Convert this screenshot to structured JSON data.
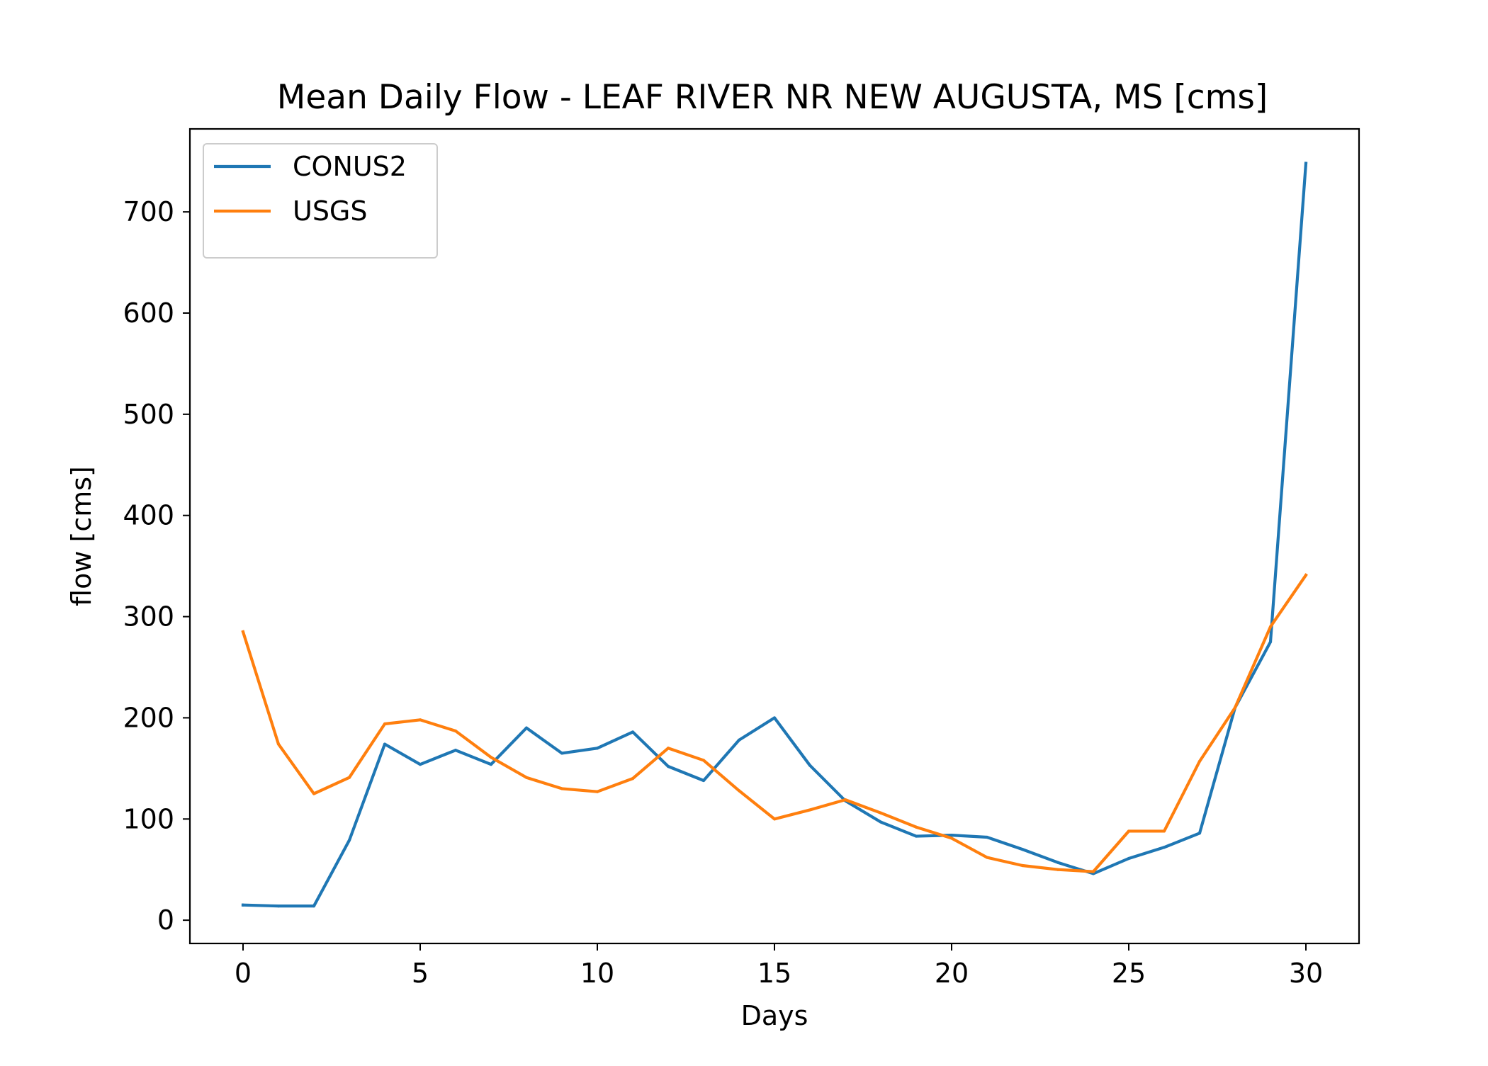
{
  "chart_data": {
    "type": "line",
    "title": "Mean Daily Flow - LEAF RIVER NR NEW AUGUSTA, MS [cms]",
    "xlabel": "Days",
    "ylabel": "flow [cms]",
    "xlim": [
      -1.5,
      31.5
    ],
    "ylim": [
      -23,
      782
    ],
    "xticks": [
      0,
      5,
      10,
      15,
      20,
      25,
      30
    ],
    "yticks": [
      0,
      100,
      200,
      300,
      400,
      500,
      600,
      700
    ],
    "grid": false,
    "legend_position": "upper-left",
    "x": [
      0,
      1,
      2,
      3,
      4,
      5,
      6,
      7,
      8,
      9,
      10,
      11,
      12,
      13,
      14,
      15,
      16,
      17,
      18,
      19,
      20,
      21,
      22,
      23,
      24,
      25,
      26,
      27,
      28,
      29,
      30
    ],
    "series": [
      {
        "name": "CONUS2",
        "color": "#1f77b4",
        "values": [
          15,
          14,
          14,
          79,
          174,
          154,
          168,
          154,
          190,
          165,
          170,
          186,
          152,
          138,
          178,
          200,
          153,
          118,
          97,
          83,
          84,
          82,
          70,
          57,
          46,
          61,
          72,
          86,
          210,
          275,
          748
        ]
      },
      {
        "name": "USGS",
        "color": "#ff7f0e",
        "values": [
          285,
          174,
          125,
          141,
          194,
          198,
          187,
          161,
          141,
          130,
          127,
          140,
          170,
          158,
          128,
          100,
          109,
          119,
          106,
          92,
          81,
          62,
          54,
          50,
          48,
          88,
          88,
          157,
          210,
          290,
          341
        ]
      }
    ]
  }
}
